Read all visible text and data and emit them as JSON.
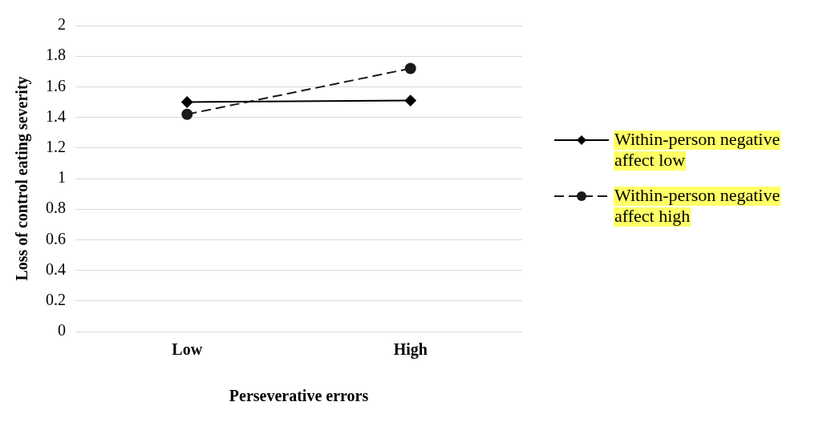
{
  "chart_data": {
    "type": "line",
    "xlabel": "Perseverative errors",
    "ylabel": "Loss of control eating severity",
    "categories": [
      "Low",
      "High"
    ],
    "series": [
      {
        "name": "Within-person negative affect low",
        "color": "#000000",
        "values": [
          1.5,
          1.51
        ],
        "marker": "diamond",
        "line_style": "solid"
      },
      {
        "name": "Within-person negative affect high",
        "color": "#1a1a1a",
        "values": [
          1.42,
          1.72
        ],
        "marker": "circle",
        "line_style": "dashed"
      }
    ],
    "ylim": [
      0,
      2
    ],
    "yticks": [
      0,
      0.2,
      0.4,
      0.6,
      0.8,
      1,
      1.2,
      1.4,
      1.6,
      1.8,
      2
    ],
    "grid": "y",
    "legend": "right"
  }
}
